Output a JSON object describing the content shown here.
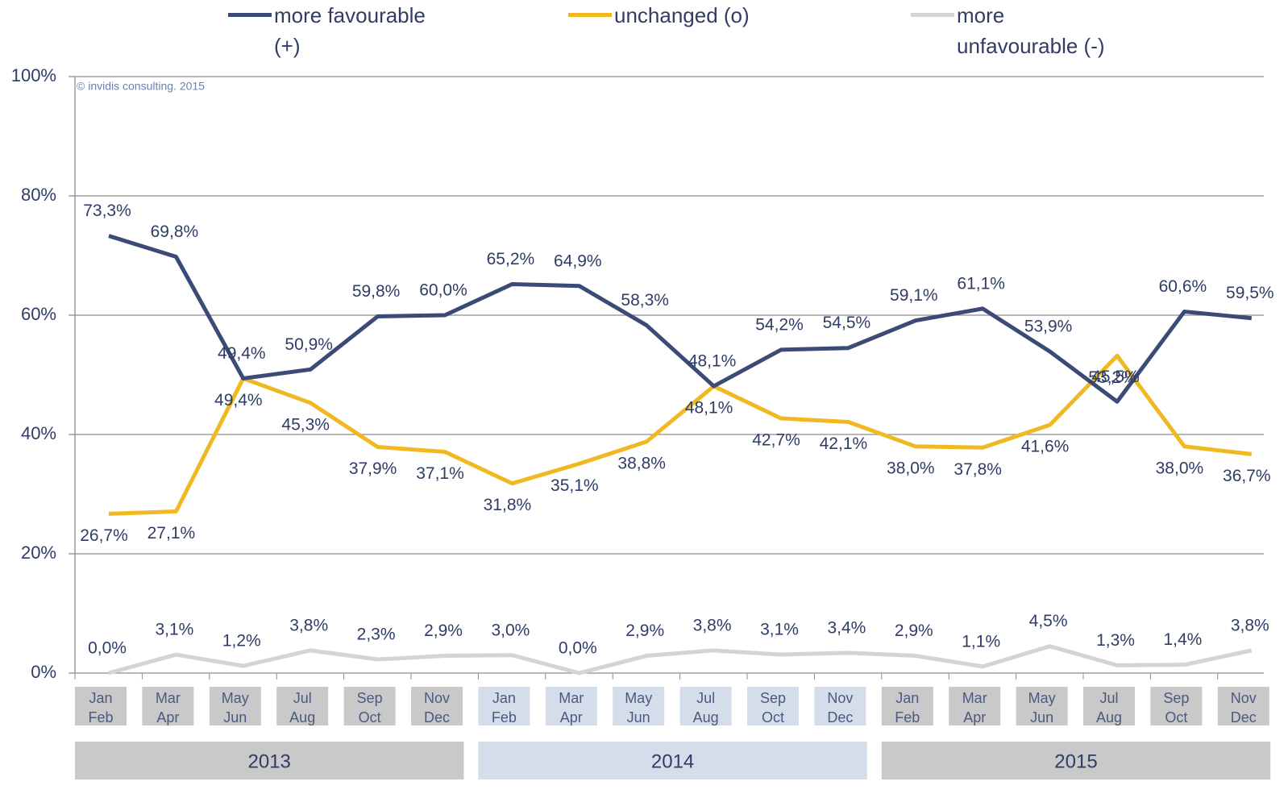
{
  "chart_data": {
    "type": "line",
    "annotation": "© invidis consulting. 2015",
    "categories": [
      [
        "Jan",
        "Feb"
      ],
      [
        "Mar",
        "Apr"
      ],
      [
        "May",
        "Jun"
      ],
      [
        "Jul",
        "Aug"
      ],
      [
        "Sep",
        "Oct"
      ],
      [
        "Nov",
        "Dec"
      ],
      [
        "Jan",
        "Feb"
      ],
      [
        "Mar",
        "Apr"
      ],
      [
        "May",
        "Jun"
      ],
      [
        "Jul",
        "Aug"
      ],
      [
        "Sep",
        "Oct"
      ],
      [
        "Nov",
        "Dec"
      ],
      [
        "Jan",
        "Feb"
      ],
      [
        "Mar",
        "Apr"
      ],
      [
        "May",
        "Jun"
      ],
      [
        "Jul",
        "Aug"
      ],
      [
        "Sep",
        "Oct"
      ],
      [
        "Nov",
        "Dec"
      ]
    ],
    "year_groups": [
      {
        "label": "2013",
        "color": "#c9c9c9"
      },
      {
        "label": "2014",
        "color": "#d5dcea"
      },
      {
        "label": "2015",
        "color": "#c9c9c9"
      }
    ],
    "series": [
      {
        "name": "more favourable (+)",
        "color": "#3b4a76",
        "values": [
          73.3,
          69.8,
          49.4,
          50.9,
          59.8,
          60.0,
          65.2,
          64.9,
          58.3,
          48.1,
          54.2,
          54.5,
          59.1,
          61.1,
          53.9,
          45.5,
          60.6,
          59.5
        ],
        "value_labels": [
          "73,3%",
          "69,8%",
          "49,4%",
          "50,9%",
          "59,8%",
          "60,0%",
          "65,2%",
          "64,9%",
          "58,3%",
          "48,1%",
          "54,2%",
          "54,5%",
          "59,1%",
          "61,1%",
          "53,9%",
          "45,5%",
          "60,6%",
          "59,5%"
        ]
      },
      {
        "name": "unchanged (o)",
        "color": "#f0b921",
        "values": [
          26.7,
          27.1,
          49.4,
          45.3,
          37.9,
          37.1,
          31.8,
          35.1,
          38.8,
          48.1,
          42.7,
          42.1,
          38.0,
          37.8,
          41.6,
          53.2,
          38.0,
          36.7
        ],
        "value_labels": [
          "26,7%",
          "27,1%",
          "49,4%",
          "45,3%",
          "37,9%",
          "37,1%",
          "31,8%",
          "35,1%",
          "38,8%",
          "48,1%",
          "42,7%",
          "42,1%",
          "38,0%",
          "37,8%",
          "41,6%",
          "53,2%",
          "38,0%",
          "36,7%"
        ]
      },
      {
        "name": "more unfavourable (-)",
        "color": "#d4d4d4",
        "values": [
          0.0,
          3.1,
          1.2,
          3.8,
          2.3,
          2.9,
          3.0,
          0.0,
          2.9,
          3.8,
          3.1,
          3.4,
          2.9,
          1.1,
          4.5,
          1.3,
          1.4,
          3.8
        ],
        "value_labels": [
          "0,0%",
          "3,1%",
          "1,2%",
          "3,8%",
          "2,3%",
          "2,9%",
          "3,0%",
          "0,0%",
          "2,9%",
          "3,8%",
          "3,1%",
          "3,4%",
          "2,9%",
          "1,1%",
          "4,5%",
          "1,3%",
          "1,4%",
          "3,8%"
        ]
      }
    ],
    "ylim": [
      0,
      100
    ],
    "yticks": [
      {
        "value": 0,
        "label": "0%"
      },
      {
        "value": 20,
        "label": "20%"
      },
      {
        "value": 40,
        "label": "40%"
      },
      {
        "value": 60,
        "label": "60%"
      },
      {
        "value": 80,
        "label": "80%"
      },
      {
        "value": 100,
        "label": "100%"
      }
    ],
    "grid": true
  }
}
